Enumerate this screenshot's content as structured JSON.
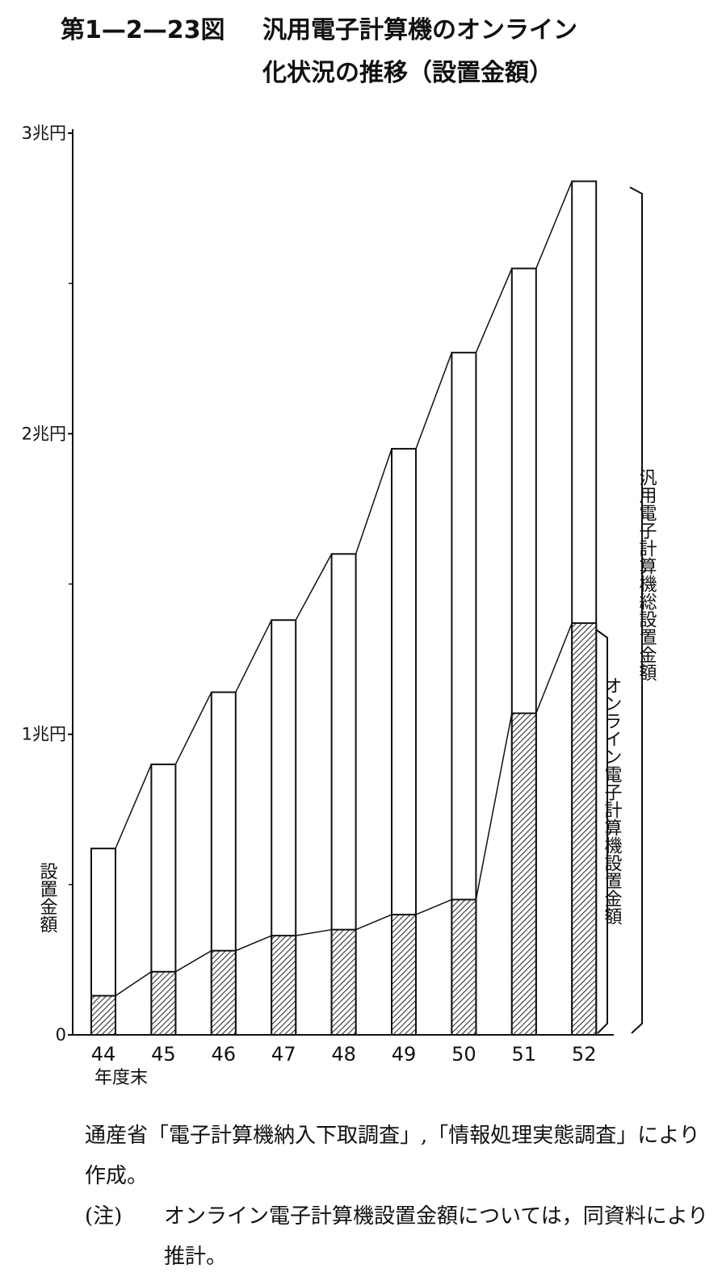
{
  "chart_data": {
    "type": "bar",
    "figure_number": "第1—2—23図",
    "title": [
      "汎用電子計算機のオンライン",
      "化状況の推移（設置金額）"
    ],
    "ylabel": "設置金額",
    "xlabel": "年度末",
    "categories": [
      "44",
      "45",
      "46",
      "47",
      "48",
      "49",
      "50",
      "51",
      "52"
    ],
    "series": [
      {
        "name": "汎用電子計算機総設置金額",
        "color": "#ffffff",
        "values": [
          0.62,
          0.9,
          1.14,
          1.38,
          1.6,
          1.95,
          2.27,
          2.55,
          2.84
        ]
      },
      {
        "name": "オンライン電子計算機設置金額",
        "color": "hatched",
        "values": [
          0.13,
          0.21,
          0.28,
          0.33,
          0.35,
          0.4,
          0.45,
          1.07,
          1.37
        ]
      }
    ],
    "ylim": [
      0,
      3
    ],
    "yticks": [
      0,
      {
        "value": 1,
        "label": "1兆円"
      },
      {
        "value": 2,
        "label": "2兆円"
      },
      {
        "value": 3,
        "label": "3兆円"
      }
    ],
    "yminor_ticks": [
      0.5,
      1.5,
      2.5
    ],
    "source": "通産省「電子計算機納入下取調査」,「情報処理実態調査」により作成。",
    "note_label": "(注)",
    "note": "オンライン電子計算機設置金額については，同資料により推計。"
  }
}
